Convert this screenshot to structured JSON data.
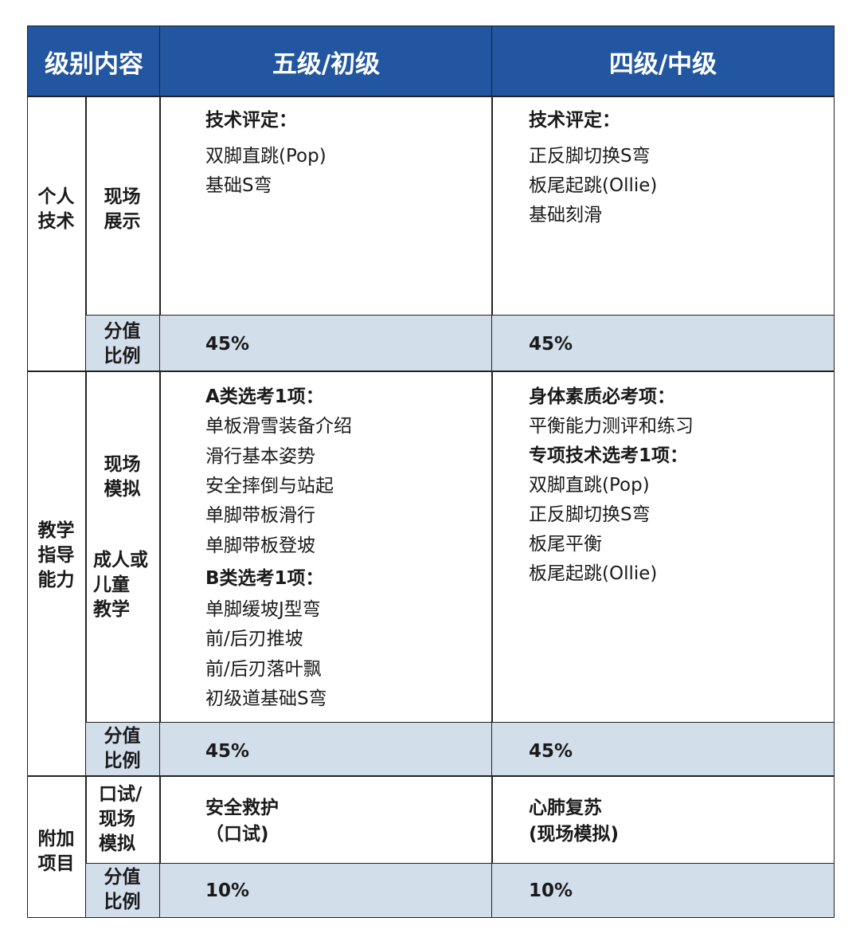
{
  "header": {
    "col_label": "级别内容",
    "level5": "五级/初级",
    "level4": "四级/中级"
  },
  "colors": {
    "header_bg": "#2356a0",
    "score_bg": "#d3deeb"
  },
  "sections": {
    "personal": {
      "label": "个人\n技术",
      "sub": "现场\n展示",
      "score_label": "分值\n比例",
      "l5": {
        "heading": "技术评定：",
        "items": [
          "双脚直跳(Pop)",
          "基础S弯"
        ],
        "score": "45%"
      },
      "l4": {
        "heading": "技术评定：",
        "items": [
          "正反脚切换S弯",
          "板尾起跳(Ollie)",
          "基础刻滑"
        ],
        "score": "45%"
      }
    },
    "teaching": {
      "label": "教学\n指导\n能力",
      "sub1": "现场\n模拟",
      "sub2": "成人或\n儿童\n教学",
      "score_label": "分值\n比例",
      "l5": {
        "heading_a": "A类选考1项：",
        "items_a": [
          "单板滑雪装备介绍",
          "滑行基本姿势",
          "安全摔倒与站起",
          "单脚带板滑行",
          "单脚带板登坡"
        ],
        "heading_b": "B类选考1项：",
        "items_b": [
          "单脚缓坡J型弯",
          "前/后刃推坡",
          "前/后刃落叶飘",
          "初级道基础S弯"
        ],
        "score": "45%"
      },
      "l4": {
        "heading_a": "身体素质必考项：",
        "items_a": [
          "平衡能力测评和练习"
        ],
        "heading_b": "专项技术选考1项：",
        "items_b": [
          "双脚直跳(Pop)",
          "正反脚切换S弯",
          "板尾平衡",
          "板尾起跳(Ollie)"
        ],
        "score": "45%"
      }
    },
    "extra": {
      "label": "附加\n项目",
      "sub": "口试/\n现场\n模拟",
      "score_label": "分值\n比例",
      "l5": {
        "line1": "安全救护",
        "line2": "（口试)",
        "score": "10%"
      },
      "l4": {
        "line1": "心肺复苏",
        "line2": "(现场模拟)",
        "score": "10%"
      }
    }
  }
}
